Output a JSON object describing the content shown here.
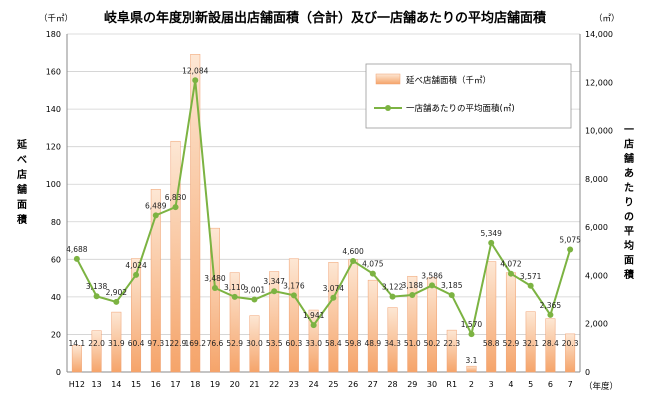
{
  "chart_data": {
    "type": "bar+line",
    "title": "岐阜県の年度別新設届出店舗面積（合計）及び一店舗あたりの平均店舗面積",
    "categories": [
      "H12",
      "13",
      "14",
      "15",
      "16",
      "17",
      "18",
      "19",
      "20",
      "21",
      "22",
      "23",
      "24",
      "25",
      "26",
      "27",
      "28",
      "29",
      "30",
      "R1",
      "2",
      "3",
      "4",
      "5",
      "6",
      "7"
    ],
    "x_unit": "（年度）",
    "y_left": {
      "unit": "（千㎡）",
      "label_chars": [
        "延",
        "べ",
        "店",
        "舗",
        "面",
        "積"
      ],
      "ylim": [
        0,
        180
      ],
      "ticks": [
        "0",
        "20",
        "40",
        "60",
        "80",
        "100",
        "120",
        "140",
        "160",
        "180"
      ]
    },
    "y_right": {
      "unit": "（㎡）",
      "label_chars": [
        "一",
        "店",
        "舗",
        "あ",
        "た",
        "り",
        "の",
        "平",
        "均",
        "面",
        "積"
      ],
      "ylim": [
        0,
        14000
      ],
      "ticks": [
        "0",
        "2,000",
        "4,000",
        "6,000",
        "8,000",
        "10,000",
        "12,000",
        "14,000"
      ]
    },
    "series": [
      {
        "name": "延べ店舗面積（千㎡）",
        "type": "bar",
        "color": "#f5a46a",
        "values": [
          14.1,
          22.0,
          31.9,
          60.4,
          97.3,
          122.9,
          169.2,
          76.6,
          52.9,
          30.0,
          53.5,
          60.3,
          33.0,
          58.4,
          59.8,
          48.9,
          34.3,
          51.0,
          50.2,
          22.3,
          3.1,
          58.8,
          52.9,
          32.1,
          28.4,
          20.3
        ],
        "labels": [
          "14.1",
          "22.0",
          "31.9",
          "60.4",
          "97.3",
          "122.9",
          "169.2",
          "76.6",
          "52.9",
          "30.0",
          "53.5",
          "60.3",
          "33.0",
          "58.4",
          "59.8",
          "48.9",
          "34.3",
          "51.0",
          "50.2",
          "22.3",
          "3.1",
          "58.8",
          "52.9",
          "32.1",
          "28.4",
          "20.3"
        ]
      },
      {
        "name": "一店舗あたりの平均面積(㎡)",
        "type": "line",
        "color": "#7cb342",
        "values": [
          4688,
          3138,
          2902,
          4024,
          6489,
          6830,
          12084,
          3480,
          3110,
          3001,
          3347,
          3176,
          1941,
          3074,
          4600,
          4075,
          3122,
          3188,
          3586,
          3185,
          1570,
          5349,
          4072,
          3571,
          2365,
          5075
        ],
        "labels": [
          "4,688",
          "3,138",
          "2,902",
          "4,024",
          "6,489",
          "6,830",
          "12,084",
          "3,480",
          "3,110",
          "3,001",
          "3,347",
          "3,176",
          "1,941",
          "3,074",
          "4,600",
          "4,075",
          "3,122",
          "3,188",
          "3,586",
          "3,185",
          "1,570",
          "5,349",
          "4,072",
          "3,571",
          "2,365",
          "5,075"
        ]
      }
    ],
    "legend_position": "top-right",
    "grid": true
  }
}
